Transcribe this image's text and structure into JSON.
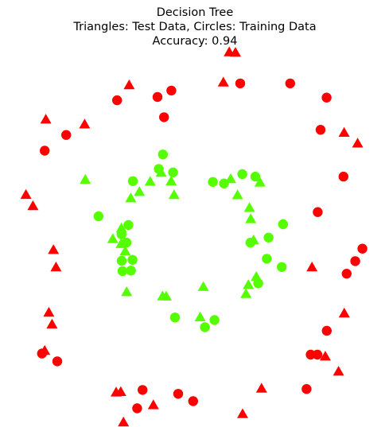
{
  "chart_data": {
    "type": "scatter",
    "title": "Decision Tree",
    "subtitle": "Triangles: Test Data, Circles: Training Data",
    "accuracy_text": "Accuracy: 0.94",
    "axes_visible": false,
    "grid": false,
    "xlim": [
      -1.1,
      1.1
    ],
    "ylim": [
      -1.1,
      1.1
    ],
    "colors": {
      "outer": "#ff0000",
      "inner": "#55ff00"
    },
    "series": [
      {
        "marker": "circle",
        "points": [
          [
            0.3,
            0.954
          ],
          [
            0.614,
            0.954
          ],
          [
            -0.474,
            0.85
          ],
          [
            -0.22,
            0.87
          ],
          [
            -0.133,
            0.91
          ],
          [
            0.843,
            0.867
          ],
          [
            -0.179,
            0.746
          ],
          [
            0.805,
            0.669
          ],
          [
            -0.794,
            0.637
          ],
          [
            -0.929,
            0.54
          ],
          [
            0.949,
            0.381
          ],
          [
            0.787,
            0.163
          ],
          [
            1.068,
            -0.062
          ],
          [
            1.023,
            -0.139
          ],
          [
            0.969,
            -0.216
          ],
          [
            0.844,
            -0.567
          ],
          [
            0.743,
            -0.714
          ],
          [
            0.785,
            -0.714
          ],
          [
            0.717,
            -0.925
          ],
          [
            -0.946,
            -0.707
          ],
          [
            -0.85,
            -0.755
          ],
          [
            -0.314,
            -0.931
          ],
          [
            0.004,
            -1.0
          ],
          [
            -0.09,
            -0.955
          ],
          [
            -0.348,
            -1.044
          ]
        ],
        "color": "outer"
      },
      {
        "marker": "triangle",
        "points": [
          [
            0.231,
            1.144
          ],
          [
            0.27,
            1.141
          ],
          [
            0.194,
            0.958
          ],
          [
            -0.398,
            0.941
          ],
          [
            -0.922,
            0.73
          ],
          [
            -0.678,
            0.7
          ],
          [
            0.953,
            0.649
          ],
          [
            1.038,
            0.583
          ],
          [
            -1.047,
            0.267
          ],
          [
            -1.003,
            0.198
          ],
          [
            -0.874,
            -0.072
          ],
          [
            -0.858,
            -0.179
          ],
          [
            0.751,
            -0.179
          ],
          [
            -0.903,
            -0.457
          ],
          [
            -0.883,
            -0.53
          ],
          [
            0.954,
            -0.462
          ],
          [
            -0.929,
            -0.692
          ],
          [
            0.835,
            -0.727
          ],
          [
            0.918,
            -0.82
          ],
          [
            0.434,
            -0.924
          ],
          [
            -0.48,
            -0.948
          ],
          [
            -0.451,
            -0.945
          ],
          [
            -0.246,
            -1.026
          ],
          [
            0.315,
            -1.081
          ],
          [
            -0.434,
            -1.132
          ]
        ],
        "color": "outer"
      },
      {
        "marker": "circle",
        "points": [
          [
            -0.186,
            0.517
          ],
          [
            -0.212,
            0.428
          ],
          [
            -0.122,
            0.407
          ],
          [
            0.128,
            0.348
          ],
          [
            0.198,
            0.339
          ],
          [
            0.313,
            0.396
          ],
          [
            0.395,
            0.381
          ],
          [
            -0.375,
            0.353
          ],
          [
            -0.591,
            0.137
          ],
          [
            -0.403,
            0.083
          ],
          [
            -0.446,
            0.026
          ],
          [
            -0.415,
            -0.025
          ],
          [
            -0.377,
            -0.131
          ],
          [
            -0.445,
            -0.137
          ],
          [
            -0.387,
            -0.197
          ],
          [
            -0.44,
            -0.2
          ],
          [
            0.364,
            -0.025
          ],
          [
            0.569,
            0.088
          ],
          [
            0.478,
            0.006
          ],
          [
            0.467,
            -0.124
          ],
          [
            0.561,
            -0.175
          ],
          [
            0.413,
            -0.275
          ],
          [
            0.138,
            -0.501
          ],
          [
            0.078,
            -0.545
          ],
          [
            -0.11,
            -0.485
          ]
        ],
        "color": "inner"
      },
      {
        "marker": "triangle",
        "points": [
          [
            -0.674,
            0.36
          ],
          [
            -0.334,
            0.285
          ],
          [
            -0.388,
            0.246
          ],
          [
            -0.266,
            0.348
          ],
          [
            -0.197,
            0.403
          ],
          [
            -0.134,
            0.35
          ],
          [
            -0.116,
            0.266
          ],
          [
            -0.447,
            0.061
          ],
          [
            -0.449,
            -0.035
          ],
          [
            -0.501,
            -0.005
          ],
          [
            -0.423,
            -0.08
          ],
          [
            -0.414,
            -0.331
          ],
          [
            0.24,
            0.364
          ],
          [
            0.283,
            0.265
          ],
          [
            0.358,
            0.187
          ],
          [
            0.424,
            0.343
          ],
          [
            0.366,
            0.118
          ],
          [
            0.384,
            -0.012
          ],
          [
            0.401,
            -0.237
          ],
          [
            0.336,
            -0.342
          ],
          [
            0.351,
            -0.287
          ],
          [
            0.068,
            -0.299
          ],
          [
            -0.165,
            -0.358
          ],
          [
            -0.188,
            -0.357
          ],
          [
            0.048,
            -0.486
          ]
        ],
        "color": "inner"
      }
    ]
  }
}
